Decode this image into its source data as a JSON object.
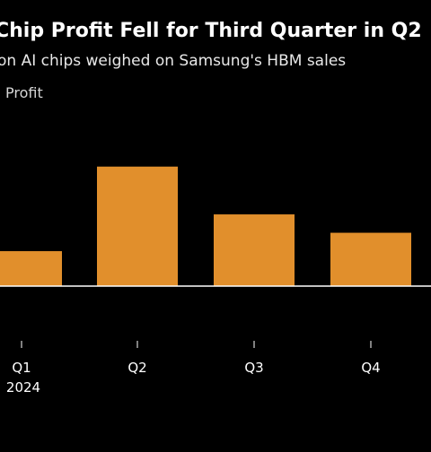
{
  "header": {
    "title": "Chip Profit Fell for Third Quarter in Q2",
    "subtitle": "on AI chips weighed on Samsung's HBM sales",
    "legend_label": "Profit"
  },
  "colors": {
    "background": "#000000",
    "bar": "#e18f2c",
    "text": "#ffffff"
  },
  "chart_data": {
    "type": "bar",
    "categories": [
      "Q1",
      "Q2",
      "Q3",
      "Q4"
    ],
    "year_label": "2024",
    "series": [
      {
        "name": "Profit",
        "values": [
          1.9,
          6.5,
          3.9,
          2.9
        ]
      }
    ],
    "ylim": [
      -4,
      10
    ]
  }
}
